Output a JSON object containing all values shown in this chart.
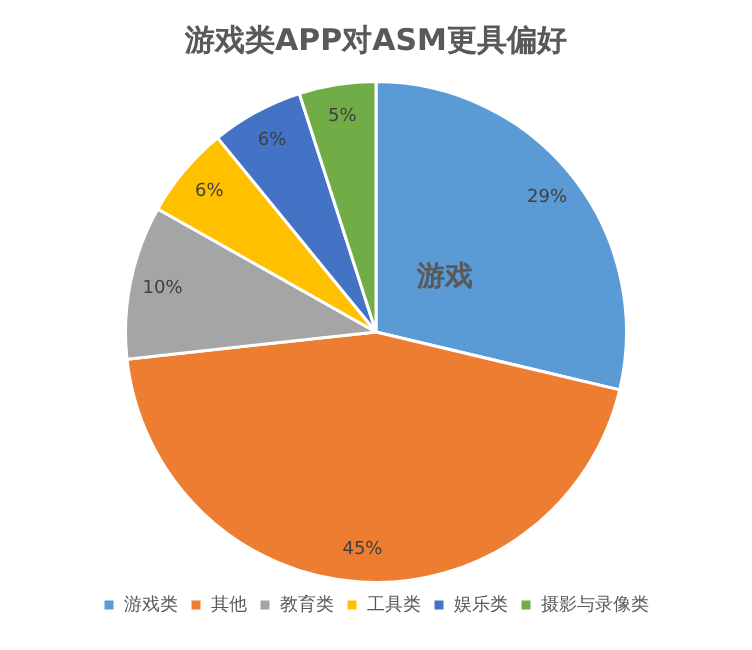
{
  "chart_data": {
    "type": "pie",
    "title": "游戏类APP对ASM更具偏好",
    "categories": [
      "游戏类",
      "其他",
      "教育类",
      "工具类",
      "娱乐类",
      "摄影与录像类"
    ],
    "values": [
      29,
      45,
      10,
      6,
      6,
      5
    ],
    "value_labels": [
      "29%",
      "45%",
      "10%",
      "6%",
      "6%",
      "5%"
    ],
    "colors": [
      "#5b9bd5",
      "#ed7d31",
      "#a5a5a5",
      "#ffc000",
      "#4472c4",
      "#70ad47"
    ],
    "annotations": [
      "游戏"
    ],
    "legend": "bottom"
  }
}
